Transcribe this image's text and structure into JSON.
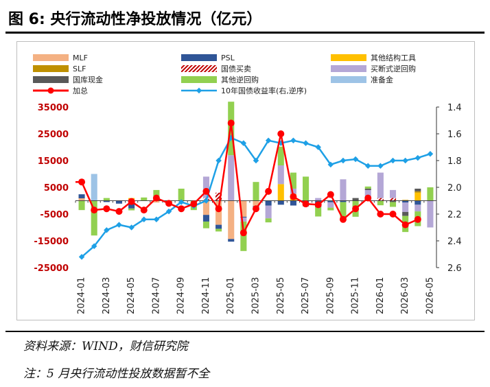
{
  "header": {
    "title": "图 6:  央行流动性净投放情况（亿元）"
  },
  "footer": {
    "source": "资料来源：WIND，财信研究院",
    "note": "注：5 月央行流动性投放数据暂不全"
  },
  "colors": {
    "MLF": "#f4b183",
    "PSL": "#2f5597",
    "other_tools": "#ffc000",
    "SLF": "#bf9000",
    "bond_trade": "#c00000",
    "outright_reverse_repo": "#b4a7d6",
    "treasury_cash": "#595959",
    "other_reverse_repo": "#92d050",
    "reserve": "#9dc3e6",
    "total": "#ff0000",
    "yield": "#1ea0e6"
  },
  "chart_data": {
    "type": "bar",
    "title": "",
    "xlabel": "",
    "ylabel": "",
    "ylim": [
      -25000,
      35000
    ],
    "y_ticks": [
      35000,
      25000,
      15000,
      5000,
      -5000,
      -15000,
      -25000
    ],
    "y2lim": [
      1.4,
      2.6
    ],
    "y2_reversed": true,
    "y2_ticks": [
      "1.4",
      "1.6",
      "1.8",
      "2.0",
      "2.2",
      "2.4",
      "2.6"
    ],
    "x_tick_labels": [
      "2024-01",
      "2024-03",
      "2024-05",
      "2024-07",
      "2024-09",
      "2024-11",
      "2025-01",
      "2025-03",
      "2025-05",
      "2025-07",
      "2025-09",
      "2025-11",
      "2026-01",
      "2026-03",
      "2026-05"
    ],
    "categories": [
      "2024-01",
      "2024-02",
      "2024-03",
      "2024-04",
      "2024-05",
      "2024-06",
      "2024-07",
      "2024-08",
      "2024-09",
      "2024-10",
      "2024-11",
      "2024-12",
      "2025-01",
      "2025-02",
      "2025-03",
      "2025-04",
      "2025-05",
      "2025-06",
      "2025-07",
      "2025-08",
      "2025-09",
      "2025-10",
      "2025-11",
      "2025-12",
      "2026-01",
      "2026-02",
      "2026-03",
      "2026-04",
      "2026-05"
    ],
    "legend_placement": "top",
    "grid": false,
    "legend": [
      {
        "key": "MLF",
        "label": "MLF",
        "kind": "bar"
      },
      {
        "key": "PSL",
        "label": "PSL",
        "kind": "bar"
      },
      {
        "key": "other_tools",
        "label": "其他结构工具",
        "kind": "bar"
      },
      {
        "key": "SLF",
        "label": "SLF",
        "kind": "bar"
      },
      {
        "key": "bond_trade",
        "label": "国债买卖",
        "kind": "hatch"
      },
      {
        "key": "outright_reverse_repo",
        "label": "买断式逆回购",
        "kind": "bar"
      },
      {
        "key": "treasury_cash",
        "label": "国库现金",
        "kind": "bar"
      },
      {
        "key": "other_reverse_repo",
        "label": "其他逆回购",
        "kind": "bar"
      },
      {
        "key": "reserve",
        "label": "准备金",
        "kind": "bar"
      },
      {
        "key": "total",
        "label": "加总",
        "kind": "line-circle"
      },
      {
        "key": "yield",
        "label": "10年国债收益率(右,逆序)",
        "kind": "line-diamond"
      }
    ],
    "series": [
      {
        "key": "MLF",
        "values": [
          900,
          0,
          0,
          0,
          -900,
          0,
          -700,
          0,
          0,
          0,
          -5300,
          -9000,
          -14300,
          -6000,
          -2000,
          0,
          0,
          0,
          0,
          0,
          0,
          0,
          0,
          0,
          0,
          0,
          0,
          0,
          0
        ]
      },
      {
        "key": "PSL",
        "values": [
          1500,
          0,
          -500,
          -1100,
          -2000,
          0,
          0,
          0,
          0,
          0,
          -2500,
          -1500,
          -1000,
          -300,
          -1000,
          -1800,
          -1500,
          -1800,
          -1300,
          -1200,
          -600,
          -500,
          0,
          0,
          0,
          0,
          -700,
          -1500,
          0
        ]
      },
      {
        "key": "other_tools",
        "values": [
          0,
          0,
          0,
          0,
          1000,
          0,
          0,
          0,
          0,
          0,
          0,
          0,
          0,
          0,
          0,
          0,
          6200,
          2500,
          0,
          0,
          0,
          0,
          0,
          0,
          0,
          0,
          0,
          3000,
          0
        ]
      },
      {
        "key": "SLF",
        "values": [
          0,
          0,
          0,
          0,
          0,
          0,
          0,
          0,
          0,
          0,
          0,
          0,
          0,
          0,
          0,
          0,
          0,
          0,
          0,
          0,
          0,
          0,
          0,
          0,
          0,
          0,
          300,
          500,
          0
        ]
      },
      {
        "key": "bond_trade",
        "values": [
          0,
          0,
          0,
          0,
          0,
          0,
          0,
          0,
          0,
          0,
          1000,
          3000,
          0,
          0,
          0,
          0,
          0,
          0,
          0,
          0,
          0,
          0,
          0,
          0,
          1000,
          1000,
          0,
          0,
          0
        ]
      },
      {
        "key": "outright_reverse_repo",
        "values": [
          0,
          0,
          0,
          0,
          0,
          0,
          0,
          0,
          0,
          0,
          8000,
          0,
          17000,
          -1500,
          0,
          -4800,
          7000,
          2000,
          0,
          1000,
          -2000,
          8000,
          0,
          4000,
          9500,
          3000,
          -3500,
          -2500,
          -10000
        ]
      },
      {
        "key": "treasury_cash",
        "values": [
          0,
          0,
          0,
          0,
          0,
          0,
          0,
          0,
          0,
          0,
          0,
          0,
          0,
          0,
          0,
          0,
          0,
          0,
          -800,
          -1200,
          0,
          0,
          1000,
          500,
          0,
          -500,
          -1500,
          1000,
          0
        ]
      },
      {
        "key": "other_reverse_repo",
        "values": [
          -3500,
          -13000,
          1000,
          0,
          -700,
          1200,
          4000,
          -1500,
          4500,
          -3500,
          -2500,
          -1000,
          20000,
          -11000,
          7000,
          -1500,
          7000,
          6000,
          9000,
          -3500,
          -1000,
          -6500,
          -6000,
          800,
          -1700,
          -1800,
          -6000,
          -5500,
          5000
        ]
      },
      {
        "key": "reserve",
        "values": [
          0,
          10000,
          0,
          0,
          0,
          0,
          0,
          0,
          0,
          0,
          0,
          0,
          0,
          0,
          0,
          0,
          0,
          0,
          0,
          0,
          0,
          0,
          0,
          0,
          0,
          0,
          0,
          0,
          0
        ]
      }
    ],
    "total": [
      7000,
      -3500,
      -3000,
      -4000,
      -300,
      -3500,
      1000,
      -1000,
      -3000,
      -1200,
      3500,
      -3000,
      29000,
      -12000,
      -3000,
      3500,
      25000,
      1500,
      -1200,
      -1500,
      2300,
      -7000,
      -3000,
      1000,
      -5000,
      -5000,
      -9000,
      -7000,
      0
    ],
    "total_visible_count": 28,
    "yield": [
      2.52,
      2.44,
      2.32,
      2.28,
      2.3,
      2.24,
      2.24,
      2.18,
      2.11,
      2.14,
      2.1,
      1.8,
      1.63,
      1.67,
      1.8,
      1.65,
      1.67,
      1.65,
      1.67,
      1.7,
      1.83,
      1.8,
      1.79,
      1.84,
      1.84,
      1.8,
      1.8,
      1.78,
      1.75
    ]
  }
}
